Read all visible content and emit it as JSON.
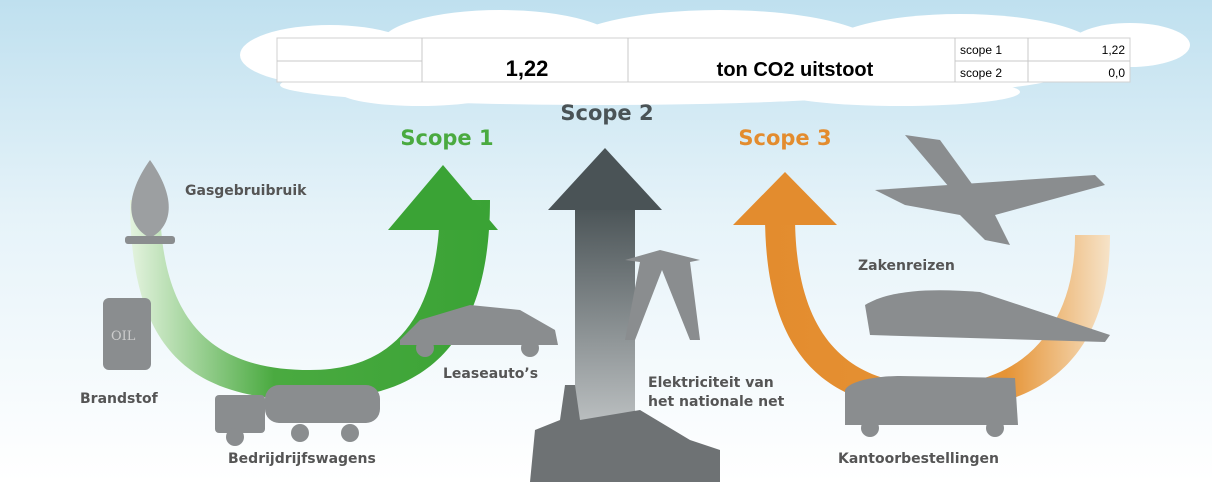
{
  "summary": {
    "total": "1,22",
    "unit": "ton CO2 uitstoot",
    "scopes": [
      {
        "label": "scope 1",
        "value": "1,22"
      },
      {
        "label": "scope 2",
        "value": "0,0"
      }
    ]
  },
  "infographic": {
    "scope1": {
      "title": "Scope 1",
      "items": [
        "Gasgebruibruik",
        "Brandstof",
        "Bedrijdrijfswagens",
        "Leaseauto’s"
      ]
    },
    "scope2": {
      "title": "Scope 2",
      "items": [
        "Elektriciteit van",
        "het nationale net"
      ]
    },
    "scope3": {
      "title": "Scope 3",
      "items": [
        "Zakenreizen",
        "Kantoorbestellingen"
      ]
    }
  }
}
